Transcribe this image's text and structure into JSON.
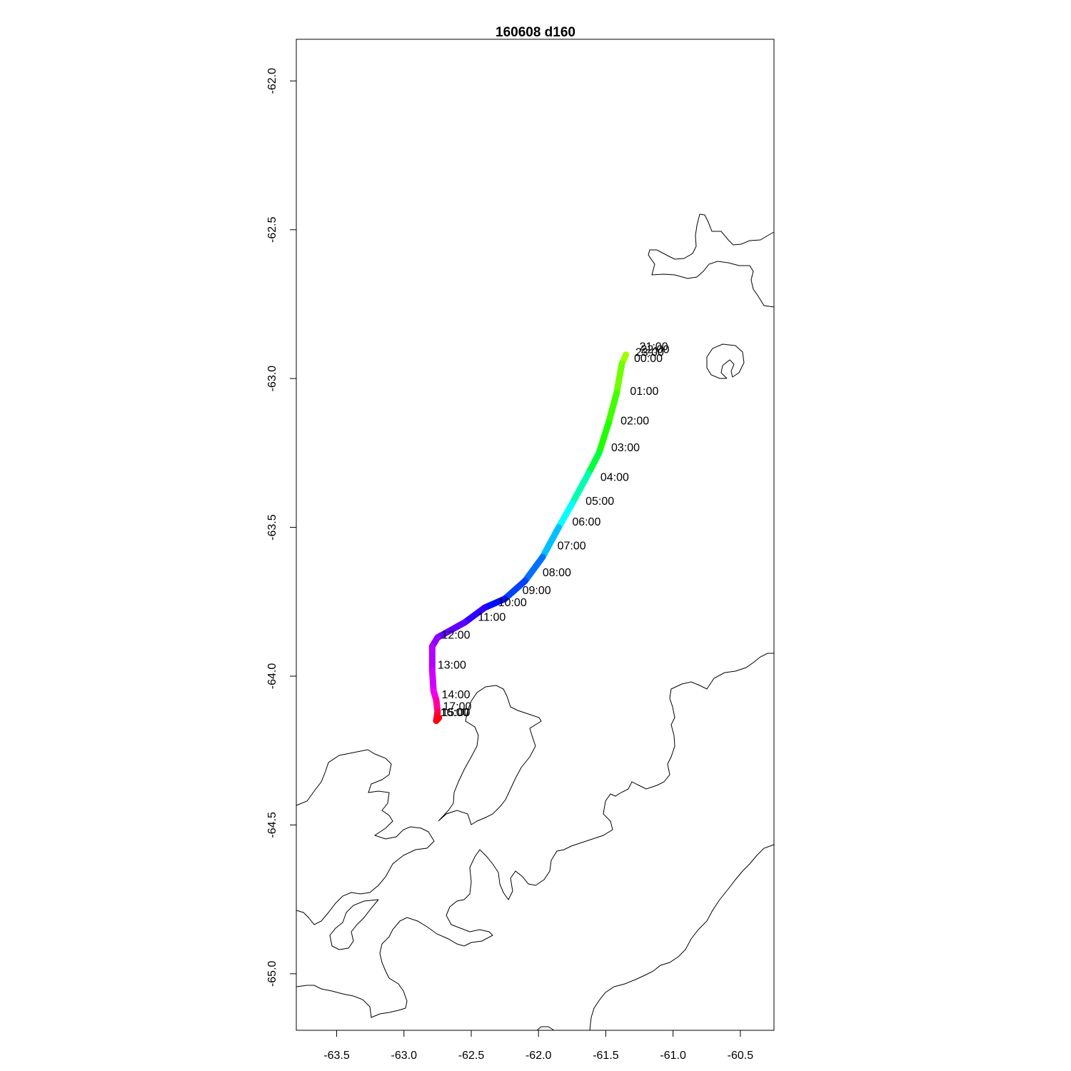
{
  "map": {
    "title": "160608   d160",
    "x_ticks": [
      "-63.5",
      "-63.0",
      "-62.5",
      "-62.0",
      "-61.5",
      "-61.0",
      "-60.5"
    ],
    "y_ticks": [
      "-62.0",
      "-62.5",
      "-63.0",
      "-63.5",
      "-64.0",
      "-64.5",
      "-65.0"
    ],
    "x_tick_values": [
      -63.5,
      -63.0,
      -62.5,
      -62.0,
      -61.5,
      -61.0,
      -60.5
    ],
    "y_tick_values": [
      -62.0,
      -62.5,
      -63.0,
      -63.5,
      -64.0,
      -64.5,
      -65.0
    ],
    "xlim": [
      -63.8,
      -60.25
    ],
    "ylim": [
      -65.19,
      -61.86
    ],
    "track_color_scheme": "rainbow by hour (red → yellow → green → cyan → blue → magenta → red)",
    "track": [
      {
        "lon": -61.35,
        "lat": -62.92,
        "color": "#ffb000"
      },
      {
        "lon": -61.38,
        "lat": -62.95,
        "color": "#a0ff00"
      },
      {
        "lon": -61.42,
        "lat": -63.05,
        "color": "#70ff00"
      },
      {
        "lon": -61.48,
        "lat": -63.15,
        "color": "#40ff00"
      },
      {
        "lon": -61.55,
        "lat": -63.25,
        "color": "#20ff00"
      },
      {
        "lon": -61.63,
        "lat": -63.32,
        "color": "#00ff40"
      },
      {
        "lon": -61.75,
        "lat": -63.42,
        "color": "#00ffb0"
      },
      {
        "lon": -61.85,
        "lat": -63.5,
        "color": "#00ffff"
      },
      {
        "lon": -61.97,
        "lat": -63.6,
        "color": "#00c0ff"
      },
      {
        "lon": -62.1,
        "lat": -63.68,
        "color": "#0070ff"
      },
      {
        "lon": -62.25,
        "lat": -63.74,
        "color": "#0040ff"
      },
      {
        "lon": -62.4,
        "lat": -63.77,
        "color": "#0010ff"
      },
      {
        "lon": -62.55,
        "lat": -63.82,
        "color": "#3000ff"
      },
      {
        "lon": -62.75,
        "lat": -63.87,
        "color": "#6000ff"
      },
      {
        "lon": -62.79,
        "lat": -63.9,
        "color": "#9000ff"
      },
      {
        "lon": -62.79,
        "lat": -63.98,
        "color": "#b000ff"
      },
      {
        "lon": -62.78,
        "lat": -64.05,
        "color": "#d000ff"
      },
      {
        "lon": -62.76,
        "lat": -64.08,
        "color": "#f000f0"
      },
      {
        "lon": -62.75,
        "lat": -64.12,
        "color": "#ff00a0"
      },
      {
        "lon": -62.76,
        "lat": -64.15,
        "color": "#ff0040"
      },
      {
        "lon": -62.74,
        "lat": -64.14,
        "color": "#ff0010"
      }
    ],
    "hour_labels": [
      {
        "text": "01:00",
        "lon": -61.32,
        "lat": -63.04
      },
      {
        "text": "02:00",
        "lon": -61.39,
        "lat": -63.14
      },
      {
        "text": "03:00",
        "lon": -61.46,
        "lat": -63.23
      },
      {
        "text": "04:00",
        "lon": -61.54,
        "lat": -63.33
      },
      {
        "text": "05:00",
        "lon": -61.65,
        "lat": -63.41
      },
      {
        "text": "06:00",
        "lon": -61.75,
        "lat": -63.48
      },
      {
        "text": "07:00",
        "lon": -61.86,
        "lat": -63.56
      },
      {
        "text": "08:00",
        "lon": -61.97,
        "lat": -63.65
      },
      {
        "text": "09:00",
        "lon": -62.12,
        "lat": -63.71
      },
      {
        "text": "10:00",
        "lon": -62.3,
        "lat": -63.75
      },
      {
        "text": "11:00",
        "lon": -62.45,
        "lat": -63.8
      },
      {
        "text": "12:00",
        "lon": -62.72,
        "lat": -63.86
      },
      {
        "text": "13:00",
        "lon": -62.75,
        "lat": -63.96
      },
      {
        "text": "14:00",
        "lon": -62.72,
        "lat": -64.06
      },
      {
        "text": "17:00",
        "lon": -62.71,
        "lat": -64.1
      },
      {
        "text": "16:00",
        "lon": -62.73,
        "lat": -64.12
      },
      {
        "text": "15:00",
        "lon": -62.72,
        "lat": -64.12
      },
      {
        "text": "21:00",
        "lon": -61.25,
        "lat": -62.89
      },
      {
        "text": "22:00",
        "lon": -61.24,
        "lat": -62.9
      },
      {
        "text": "23:00",
        "lon": -61.28,
        "lat": -62.91
      },
      {
        "text": "00:00",
        "lon": -61.29,
        "lat": -62.93
      }
    ]
  }
}
